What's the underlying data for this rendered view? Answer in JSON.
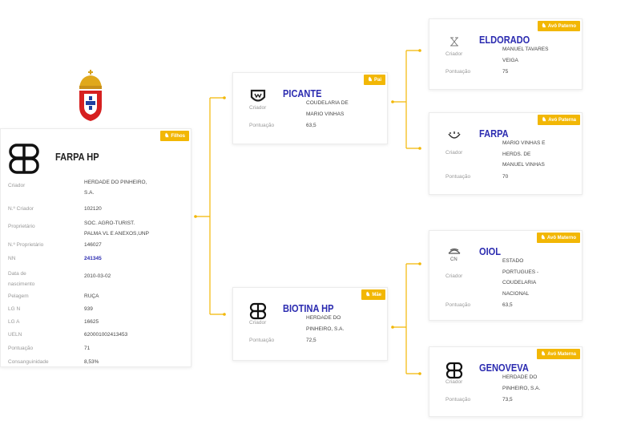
{
  "accent": "#f2b705",
  "name_color": "#2b2bb0",
  "crest": {
    "icon": "portugal-royal-crest-icon"
  },
  "main": {
    "badge": "Filhos",
    "icon": "hp-brand-icon",
    "name": "FARPA HP",
    "rows": [
      {
        "label": "Criador",
        "value": [
          "HERDADE DO PINHEIRO,",
          "S.A."
        ]
      },
      {
        "label": "N.º Criador",
        "value": [
          "102120"
        ]
      },
      {
        "label": "Proprietário",
        "value": [
          "SOC. AGRO-TURIST.",
          "PALMA VL E ANEXOS,UNP"
        ]
      },
      {
        "label": "N.º Proprietário",
        "value": [
          "146027"
        ]
      },
      {
        "label": "NN",
        "value": [
          "241345"
        ],
        "link": true
      },
      {
        "label": "Data de nascimento",
        "value": [
          "2010-03-02"
        ]
      },
      {
        "label": "Pelagem",
        "value": [
          "RUÇA"
        ]
      },
      {
        "label": "LG N",
        "value": [
          "939"
        ]
      },
      {
        "label": "LG A",
        "value": [
          "16625"
        ]
      },
      {
        "label": "UELN",
        "value": [
          "620001002413453"
        ]
      },
      {
        "label": "Pontuação",
        "value": [
          "71"
        ]
      },
      {
        "label": "Consanguinidade",
        "value": [
          "8,53%"
        ]
      }
    ]
  },
  "parents": [
    {
      "badge": "Pai",
      "icon": "vinhas-brand-icon",
      "name": "PICANTE",
      "criador": [
        "COUDELARIA DE",
        "MARIO VINHAS"
      ],
      "pontuacao": "63,5"
    },
    {
      "badge": "Mãe",
      "icon": "hp-brand-icon",
      "name": "BIOTINA HP",
      "criador": [
        "HERDADE DO",
        "PINHEIRO, S.A."
      ],
      "pontuacao": "72,5"
    }
  ],
  "grandparents": [
    {
      "badge": "Avô Paterno",
      "icon": "tavares-brand-icon",
      "name": "ELDORADO",
      "criador": [
        "MANUEL TAVARES",
        "VEIGA"
      ],
      "pontuacao": "75"
    },
    {
      "badge": "Avó Paterna",
      "icon": "vinhas-crown-brand-icon",
      "name": "FARPA",
      "criador": [
        "MARIO VINHAS E",
        "HERDS. DE",
        "MANUEL VINHAS"
      ],
      "pontuacao": "70"
    },
    {
      "badge": "Avô Materno",
      "icon": "cn-crown-brand-icon",
      "name": "OIOL",
      "criador": [
        "ESTADO",
        "PORTUGUES -",
        "COUDELARIA",
        "NACIONAL"
      ],
      "pontuacao": "63,5"
    },
    {
      "badge": "Avó Materna",
      "icon": "hp-brand-icon",
      "name": "GENOVEVA",
      "criador": [
        "HERDADE DO",
        "PINHEIRO, S.A."
      ],
      "pontuacao": "73,5"
    }
  ],
  "labels": {
    "criador": "Criador",
    "pontuacao": "Pontuação"
  }
}
